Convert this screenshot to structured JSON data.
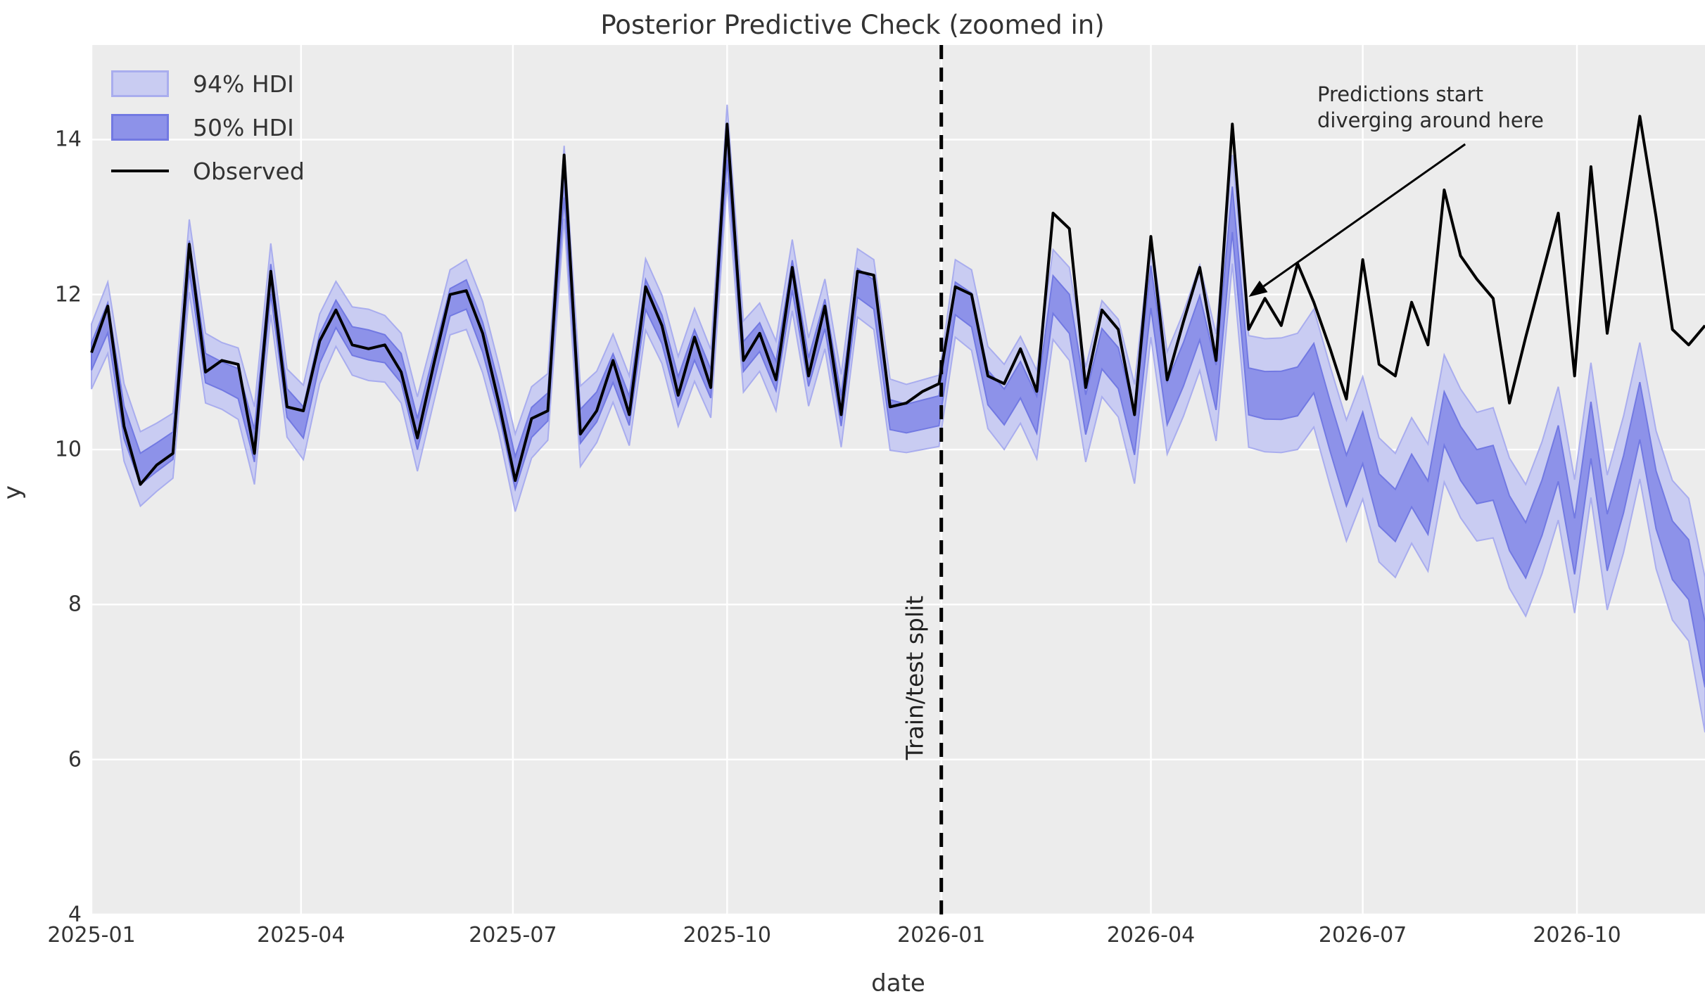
{
  "chart_data": {
    "type": "line",
    "title": "Posterior Predictive Check (zoomed in)",
    "xlabel": "date",
    "ylabel": "y",
    "x_start": "2025-01-01",
    "x_step_days": 7,
    "n_points": 100,
    "ylim": [
      4,
      15.22
    ],
    "y_ticks": [
      4,
      6,
      8,
      10,
      12,
      14
    ],
    "x_ticks": [
      {
        "date": "2025-01-01",
        "label": "2025-01"
      },
      {
        "date": "2025-04-01",
        "label": "2025-04"
      },
      {
        "date": "2025-07-01",
        "label": "2025-07"
      },
      {
        "date": "2025-10-01",
        "label": "2025-10"
      },
      {
        "date": "2026-01-01",
        "label": "2026-01"
      },
      {
        "date": "2026-04-01",
        "label": "2026-04"
      },
      {
        "date": "2026-07-01",
        "label": "2026-07"
      },
      {
        "date": "2026-10-01",
        "label": "2026-10"
      }
    ],
    "grid": true,
    "legend": {
      "position": "upper left",
      "items": [
        {
          "label": "94% HDI",
          "swatch": "band94"
        },
        {
          "label": "50% HDI",
          "swatch": "band50"
        },
        {
          "label": "Observed",
          "swatch": "line"
        }
      ]
    },
    "series": [
      {
        "name": "Observed",
        "kind": "line",
        "values": [
          11.25,
          11.85,
          10.3,
          9.55,
          9.8,
          9.95,
          12.65,
          11.0,
          11.15,
          11.1,
          9.95,
          12.3,
          10.55,
          10.5,
          11.4,
          11.8,
          11.35,
          11.3,
          11.35,
          11.0,
          10.15,
          11.1,
          12.0,
          12.05,
          11.5,
          10.6,
          9.6,
          10.4,
          10.5,
          13.8,
          10.2,
          10.5,
          11.15,
          10.45,
          12.1,
          11.6,
          10.7,
          11.45,
          10.8,
          14.2,
          11.15,
          11.5,
          10.9,
          12.35,
          10.95,
          11.85,
          10.45,
          12.3,
          12.25,
          10.55,
          10.6,
          10.75,
          10.85,
          12.1,
          12.0,
          10.95,
          10.85,
          11.3,
          10.75,
          13.05,
          12.85,
          10.8,
          11.8,
          11.55,
          10.45,
          12.75,
          10.9,
          11.65,
          12.35,
          11.15,
          14.2,
          11.55,
          11.95,
          11.6,
          12.4,
          11.9,
          11.3,
          10.65,
          12.45,
          11.1,
          10.95,
          11.9,
          11.35,
          13.35,
          12.5,
          12.2,
          11.95,
          10.6,
          11.45,
          12.25,
          13.05,
          10.95,
          13.65,
          11.5,
          12.9,
          14.3,
          13.0,
          11.55,
          11.35,
          11.6
        ]
      },
      {
        "name": "Prediction median (band center)",
        "kind": "band-center",
        "values": [
          11.2,
          11.7,
          10.35,
          9.75,
          9.9,
          10.05,
          12.5,
          11.05,
          10.95,
          10.85,
          10.05,
          12.2,
          10.6,
          10.35,
          11.3,
          11.75,
          11.4,
          11.35,
          11.3,
          11.05,
          10.2,
          11.05,
          11.9,
          12.0,
          11.45,
          10.65,
          9.7,
          10.35,
          10.55,
          13.45,
          10.3,
          10.55,
          11.05,
          10.5,
          12.0,
          11.55,
          10.75,
          11.35,
          10.85,
          13.95,
          11.2,
          11.45,
          10.95,
          12.25,
          11.0,
          11.75,
          10.5,
          12.15,
          12.0,
          10.45,
          10.4,
          10.45,
          10.5,
          11.95,
          11.8,
          10.8,
          10.55,
          10.9,
          10.45,
          12.0,
          11.75,
          10.45,
          11.3,
          11.05,
          10.2,
          12.1,
          10.6,
          11.1,
          11.7,
          10.8,
          13.1,
          10.75,
          10.7,
          10.7,
          10.75,
          11.05,
          10.3,
          9.6,
          10.15,
          9.35,
          9.15,
          9.6,
          9.25,
          10.4,
          9.95,
          9.65,
          9.7,
          9.05,
          8.7,
          9.25,
          9.95,
          8.75,
          10.25,
          8.8,
          9.55,
          10.5,
          9.35,
          8.7,
          8.45,
          7.35
        ]
      },
      {
        "name": "94% HDI half-width",
        "kind": "band-halfwidth",
        "values": [
          0.42,
          0.46,
          0.5,
          0.48,
          0.44,
          0.42,
          0.47,
          0.45,
          0.43,
          0.46,
          0.5,
          0.46,
          0.44,
          0.48,
          0.45,
          0.42,
          0.44,
          0.46,
          0.43,
          0.45,
          0.48,
          0.44,
          0.42,
          0.45,
          0.46,
          0.44,
          0.5,
          0.46,
          0.43,
          0.47,
          0.52,
          0.46,
          0.44,
          0.45,
          0.46,
          0.44,
          0.45,
          0.47,
          0.44,
          0.5,
          0.46,
          0.44,
          0.45,
          0.46,
          0.44,
          0.45,
          0.47,
          0.44,
          0.45,
          0.46,
          0.44,
          0.45,
          0.46,
          0.5,
          0.52,
          0.53,
          0.55,
          0.56,
          0.57,
          0.58,
          0.6,
          0.61,
          0.62,
          0.63,
          0.64,
          0.65,
          0.66,
          0.67,
          0.68,
          0.69,
          0.7,
          0.72,
          0.73,
          0.74,
          0.75,
          0.76,
          0.77,
          0.78,
          0.79,
          0.8,
          0.8,
          0.81,
          0.82,
          0.82,
          0.83,
          0.83,
          0.84,
          0.84,
          0.85,
          0.85,
          0.86,
          0.86,
          0.87,
          0.87,
          0.88,
          0.88,
          0.89,
          0.9,
          0.92,
          1.0
        ]
      }
    ],
    "hdi50_ratio": 0.42,
    "split_line": {
      "date": "2026-01-01",
      "label": "Train/test split",
      "style": "dashed"
    },
    "annotation": {
      "text_line1": "Predictions start",
      "text_line2": "diverging around here",
      "arrow_from": {
        "date": "2026-08-14",
        "y": 13.94
      },
      "arrow_to": {
        "date": "2026-05-13",
        "y": 11.97
      }
    },
    "colors": {
      "figure_bg": "#ffffff",
      "axes_bg": "#ececec",
      "grid": "#ffffff",
      "band94_fill": "#c9ccf2",
      "band94_edge": "#a9adee",
      "band50_fill": "#8d92e9",
      "band50_edge": "#7279e2",
      "observed": "#000000",
      "split": "#000000",
      "text": "#333333"
    }
  }
}
